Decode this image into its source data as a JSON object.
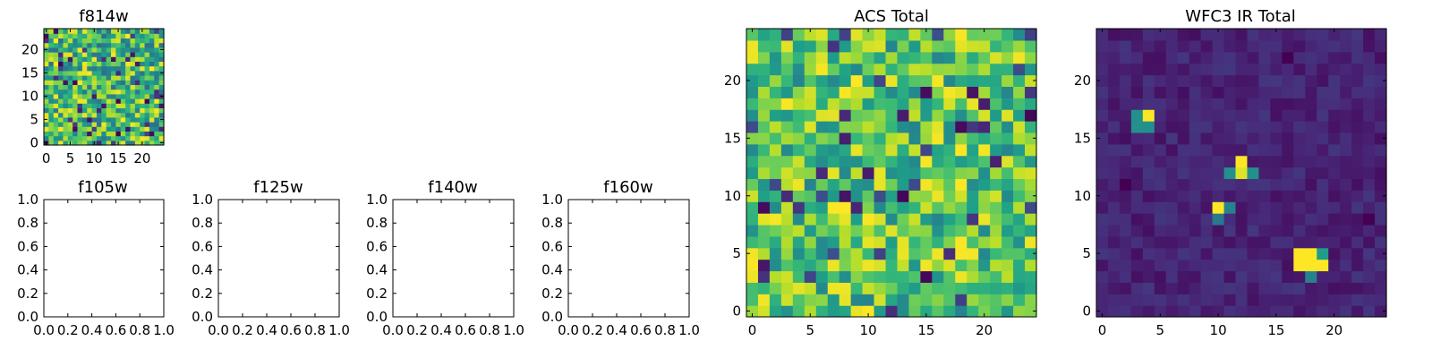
{
  "chart_data": [
    {
      "id": "f814w",
      "type": "heatmap",
      "title": "f814w",
      "colormap": "viridis",
      "grid_size": [
        25,
        25
      ],
      "xlim": [
        -0.5,
        24.5
      ],
      "ylim": [
        -0.5,
        24.5
      ],
      "xticks": [
        "0",
        "5",
        "10",
        "15",
        "20"
      ],
      "yticks": [
        "0",
        "5",
        "10",
        "15",
        "20"
      ],
      "values": "random-noise field (uniform, normalized 0-1)"
    },
    {
      "id": "f105w",
      "type": "empty",
      "title": "f105w",
      "xlim": [
        0,
        1
      ],
      "ylim": [
        0,
        1
      ],
      "xticks": [
        "0.0",
        "0.2",
        "0.4",
        "0.6",
        "0.8",
        "1.0"
      ],
      "yticks": [
        "0.0",
        "0.2",
        "0.4",
        "0.6",
        "0.8",
        "1.0"
      ]
    },
    {
      "id": "f125w",
      "type": "empty",
      "title": "f125w",
      "xlim": [
        0,
        1
      ],
      "ylim": [
        0,
        1
      ],
      "xticks": [
        "0.0",
        "0.2",
        "0.4",
        "0.6",
        "0.8",
        "1.0"
      ],
      "yticks": [
        "0.0",
        "0.2",
        "0.4",
        "0.6",
        "0.8",
        "1.0"
      ]
    },
    {
      "id": "f140w",
      "type": "empty",
      "title": "f140w",
      "xlim": [
        0,
        1
      ],
      "ylim": [
        0,
        1
      ],
      "xticks": [
        "0.0",
        "0.2",
        "0.4",
        "0.6",
        "0.8",
        "1.0"
      ],
      "yticks": [
        "0.0",
        "0.2",
        "0.4",
        "0.6",
        "0.8",
        "1.0"
      ]
    },
    {
      "id": "f160w",
      "type": "empty",
      "title": "f160w",
      "xlim": [
        0,
        1
      ],
      "ylim": [
        0,
        1
      ],
      "xticks": [
        "0.0",
        "0.2",
        "0.4",
        "0.6",
        "0.8",
        "1.0"
      ],
      "yticks": [
        "0.0",
        "0.2",
        "0.4",
        "0.6",
        "0.8",
        "1.0"
      ]
    },
    {
      "id": "acs",
      "type": "heatmap",
      "title": "ACS Total",
      "colormap": "viridis",
      "grid_size": [
        25,
        25
      ],
      "xlim": [
        -0.5,
        24.5
      ],
      "ylim": [
        -0.5,
        24.5
      ],
      "xticks": [
        "0",
        "5",
        "10",
        "15",
        "20"
      ],
      "yticks": [
        "0",
        "5",
        "10",
        "15",
        "20"
      ],
      "values": "random-noise field (mostly high, normalized 0-1)"
    },
    {
      "id": "wfc3",
      "type": "heatmap",
      "title": "WFC3 IR Total",
      "colormap": "viridis",
      "grid_size": [
        25,
        25
      ],
      "xlim": [
        -0.5,
        24.5
      ],
      "ylim": [
        -0.5,
        24.5
      ],
      "xticks": [
        "0",
        "5",
        "10",
        "15",
        "20"
      ],
      "yticks": [
        "0",
        "5",
        "10",
        "15",
        "20"
      ],
      "background_level": 0.1,
      "sources": [
        {
          "x": 4,
          "y": 17,
          "peak": 1.0
        },
        {
          "x": 12,
          "y": 13,
          "peak": 1.0
        },
        {
          "x": 10,
          "y": 9,
          "peak": 1.0
        },
        {
          "x": 18,
          "y": 5,
          "peak": 1.0
        }
      ]
    }
  ]
}
